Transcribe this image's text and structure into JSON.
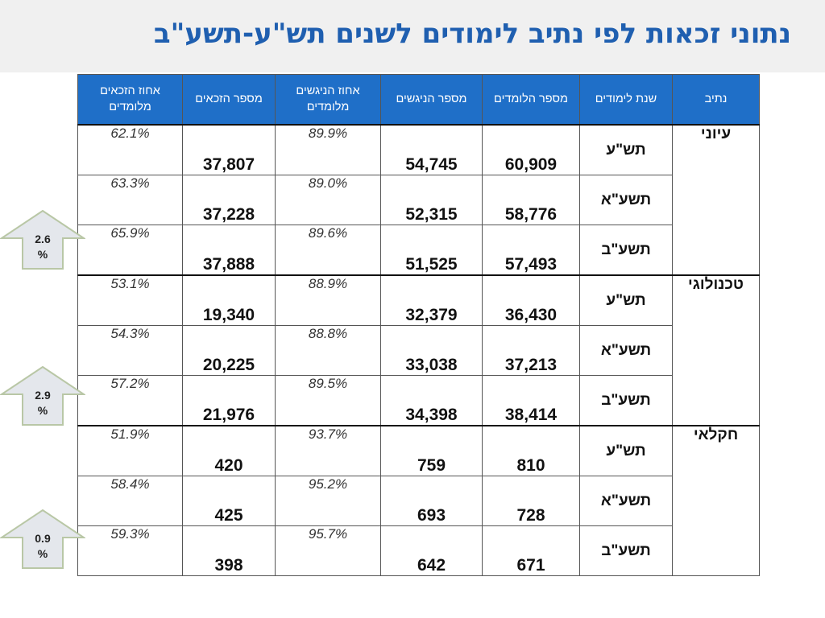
{
  "title": "נתוני זכאות לפי נתיב לימודים לשנים תש\"ע-תשע\"ב",
  "headers": {
    "track": "נתיב",
    "year": "שנת לימודים",
    "students": "מספר הלומדים",
    "examinees": "מספר הניגשים",
    "examinees_pct": "אחוז הניגשים מלומדים",
    "eligible": "מספר הזכאים",
    "eligible_pct": "אחוז הזכאים מלומדים"
  },
  "groups": [
    {
      "track": "עיוני",
      "rows": [
        {
          "year": "תש\"ע",
          "students": "60,909",
          "examinees": "54,745",
          "examinees_pct": "89.9%",
          "eligible": "37,807",
          "eligible_pct": "62.1%"
        },
        {
          "year": "תשע\"א",
          "students": "58,776",
          "examinees": "52,315",
          "examinees_pct": "89.0%",
          "eligible": "37,228",
          "eligible_pct": "63.3%"
        },
        {
          "year": "תשע\"ב",
          "students": "57,493",
          "examinees": "51,525",
          "examinees_pct": "89.6%",
          "eligible": "37,888",
          "eligible_pct": "65.9%"
        }
      ]
    },
    {
      "track": "טכנולוגי",
      "rows": [
        {
          "year": "תש\"ע",
          "students": "36,430",
          "examinees": "32,379",
          "examinees_pct": "88.9%",
          "eligible": "19,340",
          "eligible_pct": "53.1%"
        },
        {
          "year": "תשע\"א",
          "students": "37,213",
          "examinees": "33,038",
          "examinees_pct": "88.8%",
          "eligible": "20,225",
          "eligible_pct": "54.3%"
        },
        {
          "year": "תשע\"ב",
          "students": "38,414",
          "examinees": "34,398",
          "examinees_pct": "89.5%",
          "eligible": "21,976",
          "eligible_pct": "57.2%"
        }
      ]
    },
    {
      "track": "חקלאי",
      "rows": [
        {
          "year": "תש\"ע",
          "students": "810",
          "examinees": "759",
          "examinees_pct": "93.7%",
          "eligible": "420",
          "eligible_pct": "51.9%"
        },
        {
          "year": "תשע\"א",
          "students": "728",
          "examinees": "693",
          "examinees_pct": "95.2%",
          "eligible": "425",
          "eligible_pct": "58.4%"
        },
        {
          "year": "תשע\"ב",
          "students": "671",
          "examinees": "642",
          "examinees_pct": "95.7%",
          "eligible": "398",
          "eligible_pct": "59.3%"
        }
      ]
    }
  ],
  "arrows": [
    {
      "line1": "2.6",
      "line2": "%"
    },
    {
      "line1": "2.9",
      "line2": "%"
    },
    {
      "line1": "0.9",
      "line2": "%"
    }
  ],
  "colors": {
    "title": "#1f5fb0",
    "header_bg": "#1f6fc8",
    "arrow_fill": "#e4e7ec",
    "arrow_stroke": "#b9c7a6"
  }
}
